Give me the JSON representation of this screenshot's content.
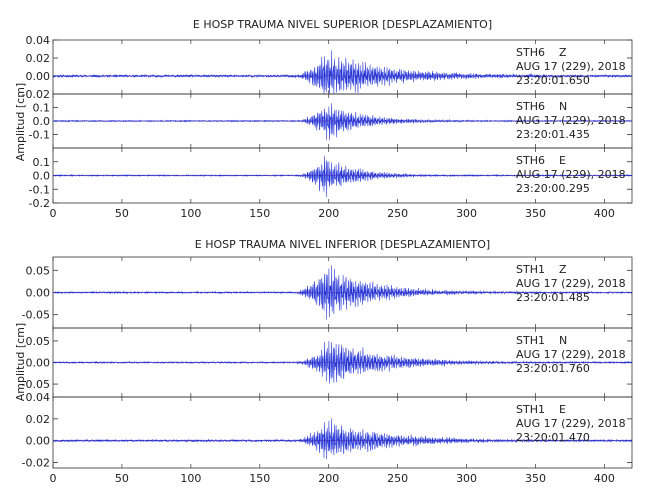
{
  "chart_data": [
    {
      "type": "line",
      "title": "E HOSP TRAUMA NIVEL SUPERIOR [DESPLAZAMIENTO]",
      "ylabel": "Amplitud [cm]",
      "xlim": [
        0,
        420
      ],
      "xticks": [
        "0",
        "50",
        "100",
        "150",
        "200",
        "250",
        "300",
        "350",
        "400"
      ],
      "series_color": "#1f2fd6",
      "zero_line_color": "#c2185b",
      "panels": [
        {
          "station": "STH6",
          "component": "Z",
          "date_line": "AUG 17 (229), 2018",
          "time_line": "23:20:01.650",
          "ylim": [
            -0.02,
            0.04
          ],
          "yticks": [
            "-0.02",
            "0.00",
            "0.02",
            "0.04"
          ],
          "signal": {
            "onset": 172,
            "peak_time": 198,
            "peak_amp": 0.032,
            "decay": 45,
            "noise": 0.0012,
            "seed": 11
          }
        },
        {
          "station": "STH6",
          "component": "N",
          "date_line": "AUG 17 (229), 2018",
          "time_line": "23:20:01.435",
          "ylim": [
            -0.2,
            0.2
          ],
          "yticks": [
            "-0.1",
            "0.0",
            "0.1"
          ],
          "signal": {
            "onset": 174,
            "peak_time": 198,
            "peak_amp": 0.16,
            "decay": 28,
            "noise": 0.004,
            "seed": 23
          }
        },
        {
          "station": "STH6",
          "component": "E",
          "date_line": "AUG 17 (229), 2018",
          "time_line": "23:20:00.295",
          "ylim": [
            -0.2,
            0.2
          ],
          "yticks": [
            "-0.2",
            "-0.1",
            "0.0",
            "0.1"
          ],
          "signal": {
            "onset": 174,
            "peak_time": 197,
            "peak_amp": 0.17,
            "decay": 24,
            "noise": 0.004,
            "seed": 37
          }
        }
      ]
    },
    {
      "type": "line",
      "title": "E HOSP TRAUMA NIVEL INFERIOR [DESPLAZAMIENTO]",
      "ylabel": "Amplitud [cm]",
      "xlim": [
        0,
        420
      ],
      "xticks": [
        "0",
        "50",
        "100",
        "150",
        "200",
        "250",
        "300",
        "350",
        "400"
      ],
      "series_color": "#1f2fd6",
      "zero_line_color": "#c2185b",
      "panels": [
        {
          "station": "STH1",
          "component": "Z",
          "date_line": "AUG 17 (229), 2018",
          "time_line": "23:20:01.485",
          "ylim": [
            -0.08,
            0.08
          ],
          "yticks": [
            "-0.05",
            "0.00",
            "0.05"
          ],
          "signal": {
            "onset": 172,
            "peak_time": 198,
            "peak_amp": 0.07,
            "decay": 36,
            "noise": 0.0015,
            "seed": 53
          }
        },
        {
          "station": "STH1",
          "component": "N",
          "date_line": "AUG 17 (229), 2018",
          "time_line": "23:20:01.760",
          "ylim": [
            -0.08,
            0.08
          ],
          "yticks": [
            "-0.05",
            "0.00",
            "0.05"
          ],
          "signal": {
            "onset": 172,
            "peak_time": 200,
            "peak_amp": 0.065,
            "decay": 40,
            "noise": 0.0015,
            "seed": 71
          }
        },
        {
          "station": "STH1",
          "component": "E",
          "date_line": "AUG 17 (229), 2018",
          "time_line": "23:20:01.470",
          "ylim": [
            -0.025,
            0.04
          ],
          "yticks": [
            "-0.02",
            "0.00",
            "0.02",
            "0.04"
          ],
          "signal": {
            "onset": 172,
            "peak_time": 198,
            "peak_amp": 0.022,
            "decay": 45,
            "noise": 0.0008,
            "seed": 97
          }
        }
      ]
    }
  ]
}
